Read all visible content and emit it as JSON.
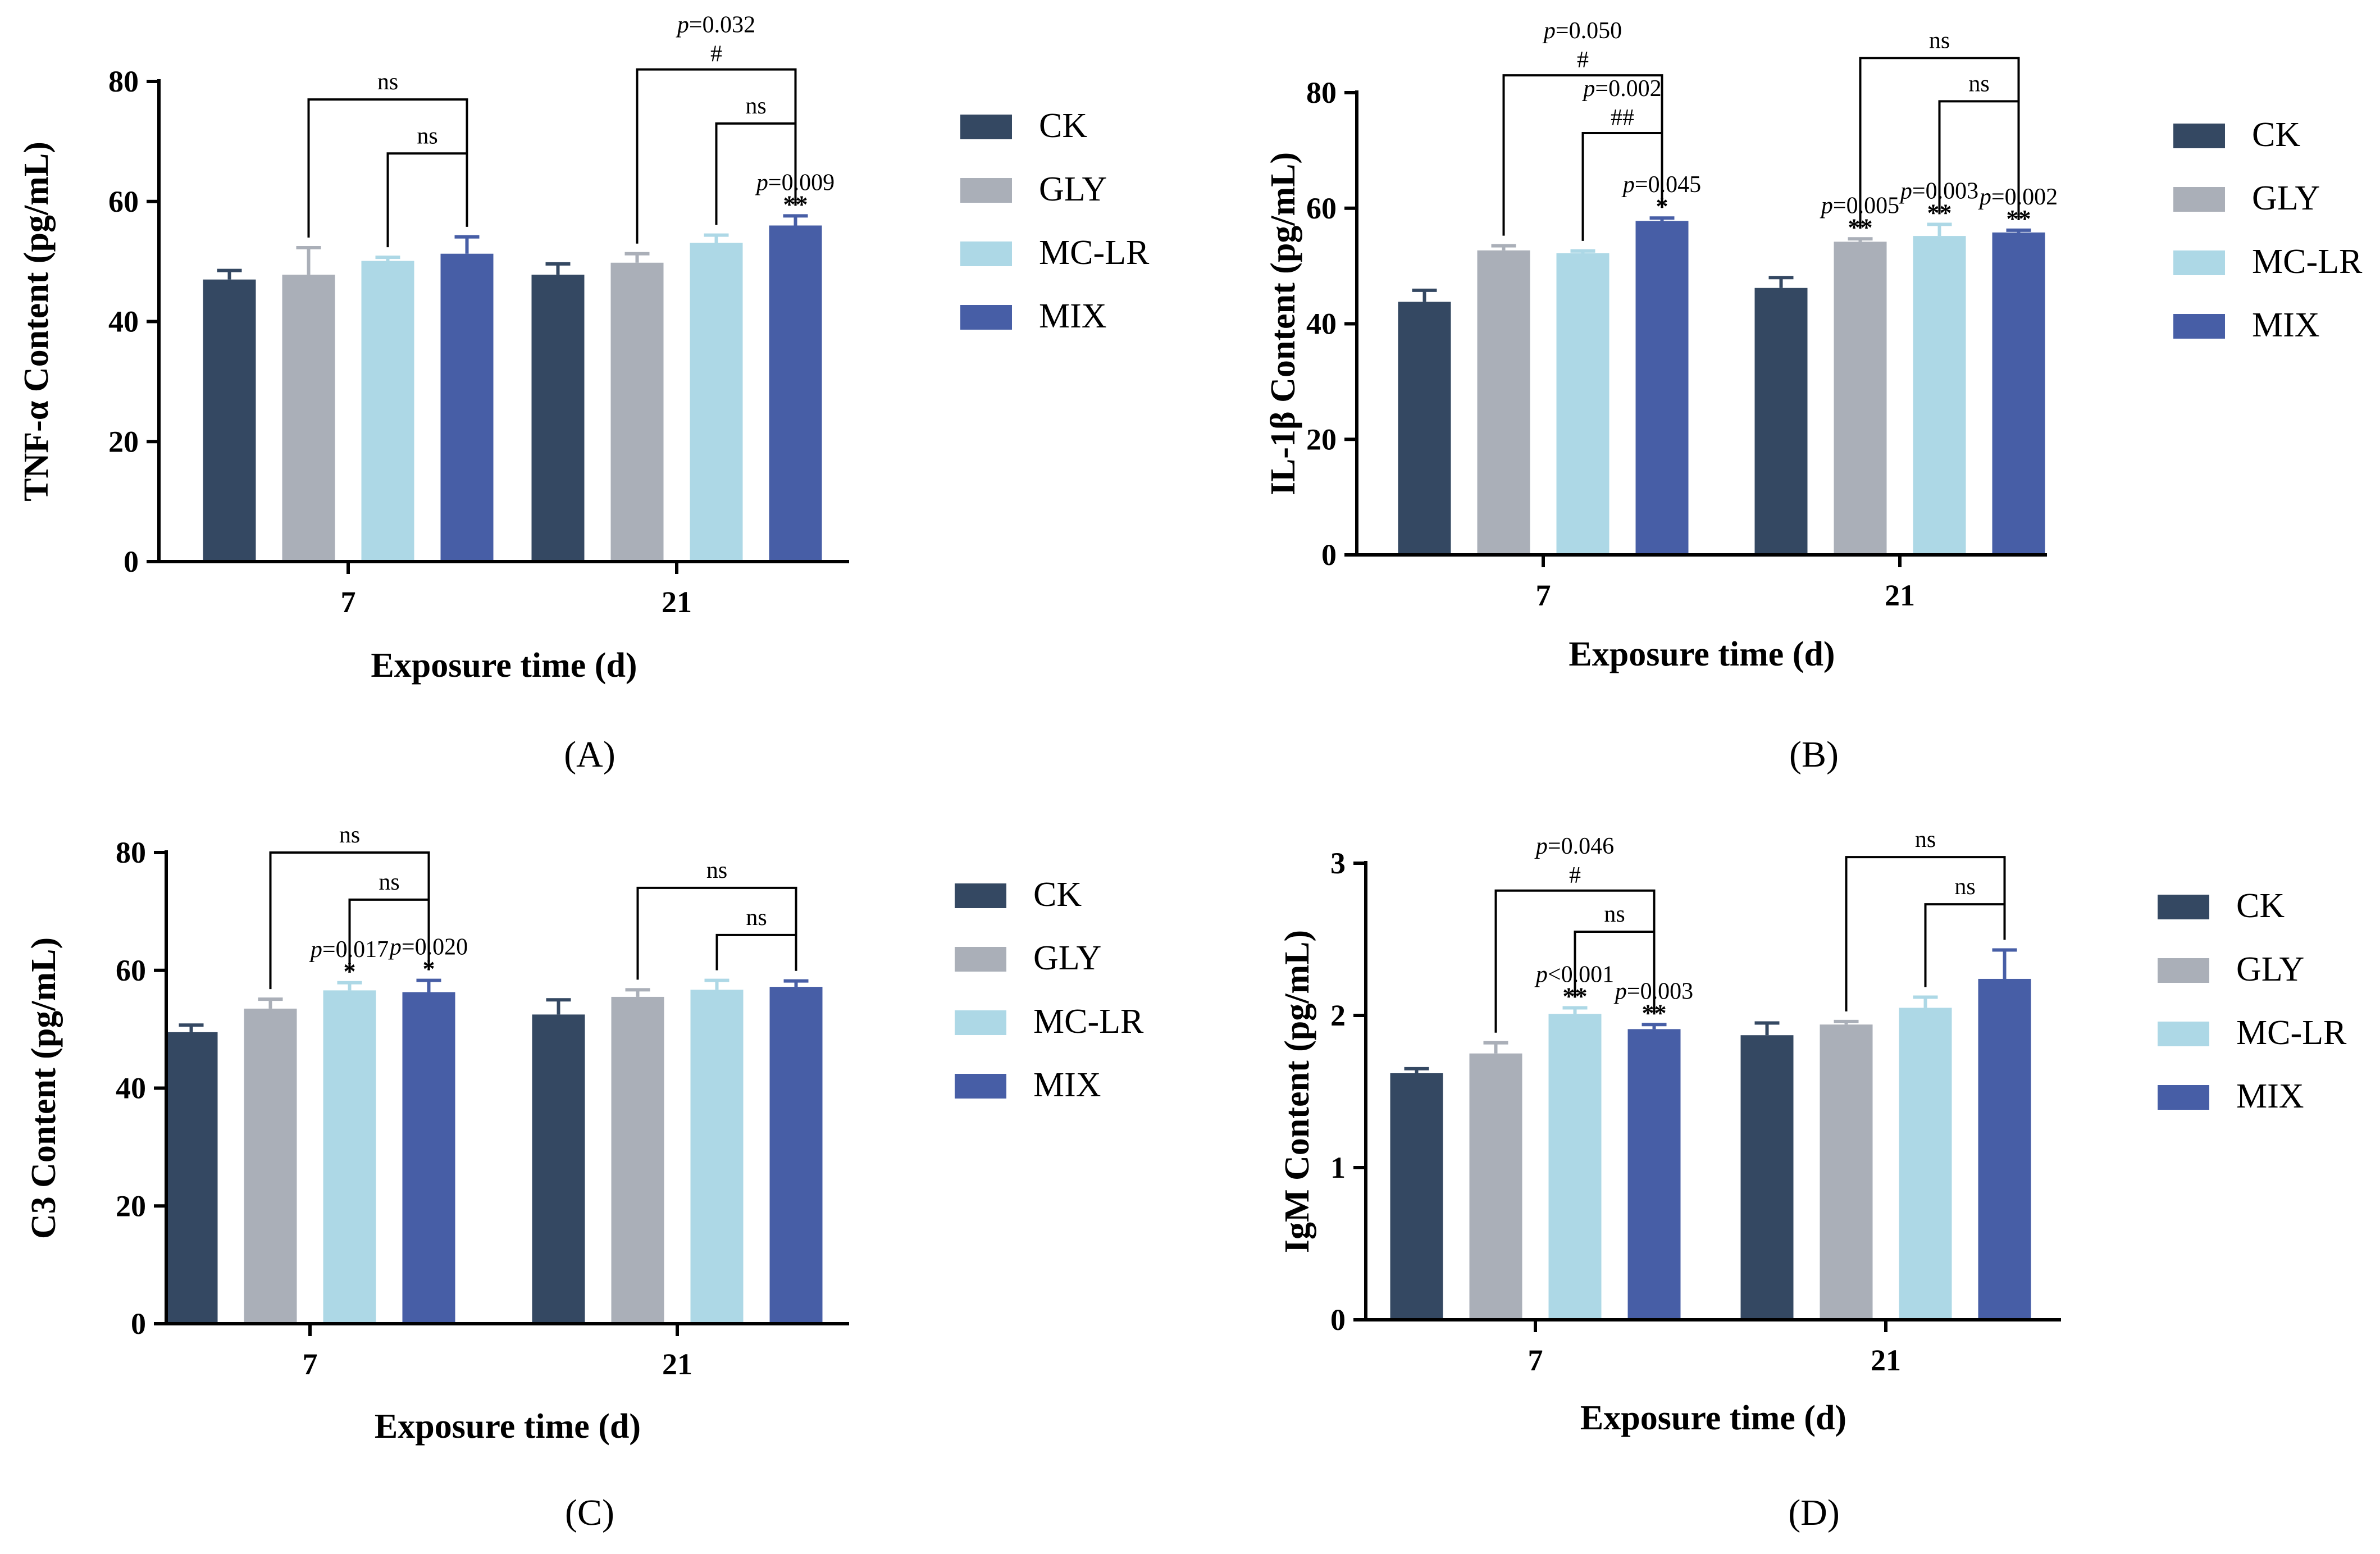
{
  "series_names": [
    "CK",
    "GLY",
    "MC-LR",
    "MIX"
  ],
  "series_colors": [
    "#344862",
    "#AAAFB8",
    "#ADD8E6",
    "#475EA6"
  ],
  "chart_data": [
    {
      "type": "bar",
      "panel_label": "(A)",
      "title": "",
      "ylabel": "TNF-α Content (pg/mL)",
      "xlabel": "Exposure time (d)",
      "categories": [
        "7",
        "21"
      ],
      "ylim": [
        0,
        80
      ],
      "yticks": [
        0,
        20,
        40,
        60,
        80
      ],
      "ytick_labels": [
        "0",
        "20",
        "40",
        "60",
        "80"
      ],
      "legend_position": "right",
      "series": [
        {
          "name": "CK",
          "values": [
            47.0,
            47.8
          ],
          "errors": [
            1.5,
            1.8
          ]
        },
        {
          "name": "GLY",
          "values": [
            47.8,
            49.8
          ],
          "errors": [
            4.5,
            1.5
          ]
        },
        {
          "name": "MC-LR",
          "values": [
            50.1,
            53.1
          ],
          "errors": [
            0.6,
            1.3
          ]
        },
        {
          "name": "MIX",
          "values": [
            51.3,
            56.0
          ],
          "errors": [
            2.8,
            1.6
          ]
        }
      ],
      "annotations": [
        {
          "group": 1,
          "series": 3,
          "pval": "=0.009",
          "mark": "**"
        }
      ],
      "brackets": [
        {
          "group": 0,
          "from": 1,
          "to": 3,
          "label": "ns",
          "top": 77
        },
        {
          "group": 0,
          "from": 2,
          "to": 3,
          "label": "ns",
          "top": 68
        },
        {
          "group": 1,
          "from": 1,
          "to": 3,
          "pval": "=0.032",
          "label": "#",
          "top": 82
        },
        {
          "group": 1,
          "from": 2,
          "to": 3,
          "label": "ns",
          "top": 73
        }
      ]
    },
    {
      "type": "bar",
      "panel_label": "(B)",
      "title": "",
      "ylabel": "IL-1β Content (pg/mL)",
      "xlabel": "Exposure time (d)",
      "categories": [
        "7",
        "21"
      ],
      "ylim": [
        0,
        80
      ],
      "yticks": [
        0,
        20,
        40,
        60,
        80
      ],
      "ytick_labels": [
        "0",
        "20",
        "40",
        "60",
        "80"
      ],
      "legend_position": "right",
      "series": [
        {
          "name": "CK",
          "values": [
            43.8,
            46.2
          ],
          "errors": [
            2.0,
            1.8
          ]
        },
        {
          "name": "GLY",
          "values": [
            52.7,
            54.2
          ],
          "errors": [
            0.8,
            0.5
          ]
        },
        {
          "name": "MC-LR",
          "values": [
            52.2,
            55.2
          ],
          "errors": [
            0.4,
            2.0
          ]
        },
        {
          "name": "MIX",
          "values": [
            57.8,
            55.8
          ],
          "errors": [
            0.5,
            0.4
          ]
        }
      ],
      "annotations": [
        {
          "group": 0,
          "series": 3,
          "pval": "=0.045",
          "mark": "*"
        },
        {
          "group": 1,
          "series": 1,
          "pval": "=0.005",
          "mark": "**"
        },
        {
          "group": 1,
          "series": 2,
          "pval": "=0.003",
          "mark": "**"
        },
        {
          "group": 1,
          "series": 3,
          "pval": "=0.002",
          "mark": "**"
        }
      ],
      "brackets": [
        {
          "group": 0,
          "from": 1,
          "to": 3,
          "pval": "=0.050",
          "label": "#",
          "top": 83
        },
        {
          "group": 0,
          "from": 2,
          "to": 3,
          "pval": "=0.002",
          "label": "##",
          "top": 73
        },
        {
          "group": 1,
          "from": 1,
          "to": 3,
          "label": "ns",
          "top": 86
        },
        {
          "group": 1,
          "from": 2,
          "to": 3,
          "label": "ns",
          "top": 78.5
        }
      ]
    },
    {
      "type": "bar",
      "panel_label": "(C)",
      "title": "",
      "ylabel": "C3 Content (pg/mL)",
      "xlabel": "Exposure time (d)",
      "categories": [
        "7",
        "21"
      ],
      "ylim": [
        0,
        80
      ],
      "yticks": [
        0,
        20,
        40,
        60,
        80
      ],
      "ytick_labels": [
        "0",
        "20",
        "40",
        "60",
        "80"
      ],
      "legend_position": "right",
      "series": [
        {
          "name": "CK",
          "values": [
            49.5,
            52.5
          ],
          "errors": [
            1.2,
            2.5
          ]
        },
        {
          "name": "GLY",
          "values": [
            53.5,
            55.5
          ],
          "errors": [
            1.6,
            1.2
          ]
        },
        {
          "name": "MC-LR",
          "values": [
            56.6,
            56.7
          ],
          "errors": [
            1.3,
            1.6
          ]
        },
        {
          "name": "MIX",
          "values": [
            56.3,
            57.2
          ],
          "errors": [
            2.0,
            1.0
          ]
        }
      ],
      "annotations": [
        {
          "group": 0,
          "series": 2,
          "pval": "=0.017",
          "mark": "*"
        },
        {
          "group": 0,
          "series": 3,
          "pval": "=0.020",
          "mark": "*"
        }
      ],
      "brackets": [
        {
          "group": 0,
          "from": 1,
          "to": 3,
          "label": "ns",
          "top": 80
        },
        {
          "group": 0,
          "from": 2,
          "to": 3,
          "label": "ns",
          "top": 72
        },
        {
          "group": 1,
          "from": 1,
          "to": 3,
          "label": "ns",
          "top": 74
        },
        {
          "group": 1,
          "from": 2,
          "to": 3,
          "label": "ns",
          "top": 66
        }
      ]
    },
    {
      "type": "bar",
      "panel_label": "(D)",
      "title": "",
      "ylabel": "IgM Content (pg/mL)",
      "xlabel": "Exposure time (d)",
      "categories": [
        "7",
        "21"
      ],
      "ylim": [
        0,
        3
      ],
      "yticks": [
        0,
        1,
        2,
        3
      ],
      "ytick_labels": [
        "0",
        "1",
        "2",
        "3"
      ],
      "legend_position": "right",
      "series": [
        {
          "name": "CK",
          "values": [
            1.62,
            1.87
          ],
          "errors": [
            0.03,
            0.08
          ]
        },
        {
          "name": "GLY",
          "values": [
            1.75,
            1.94
          ],
          "errors": [
            0.07,
            0.02
          ]
        },
        {
          "name": "MC-LR",
          "values": [
            2.01,
            2.05
          ],
          "errors": [
            0.04,
            0.07
          ]
        },
        {
          "name": "MIX",
          "values": [
            1.91,
            2.24
          ],
          "errors": [
            0.03,
            0.19
          ]
        }
      ],
      "annotations": [
        {
          "group": 0,
          "series": 2,
          "pval": "<0.001",
          "mark": "**"
        },
        {
          "group": 0,
          "series": 3,
          "pval": "=0.003",
          "mark": "**"
        }
      ],
      "brackets": [
        {
          "group": 0,
          "from": 1,
          "to": 3,
          "pval": "=0.046",
          "label": "#",
          "top": 2.82
        },
        {
          "group": 0,
          "from": 2,
          "to": 3,
          "label": "ns",
          "top": 2.55
        },
        {
          "group": 1,
          "from": 1,
          "to": 3,
          "label": "ns",
          "top": 3.04
        },
        {
          "group": 1,
          "from": 2,
          "to": 3,
          "label": "ns",
          "top": 2.73
        }
      ]
    }
  ]
}
